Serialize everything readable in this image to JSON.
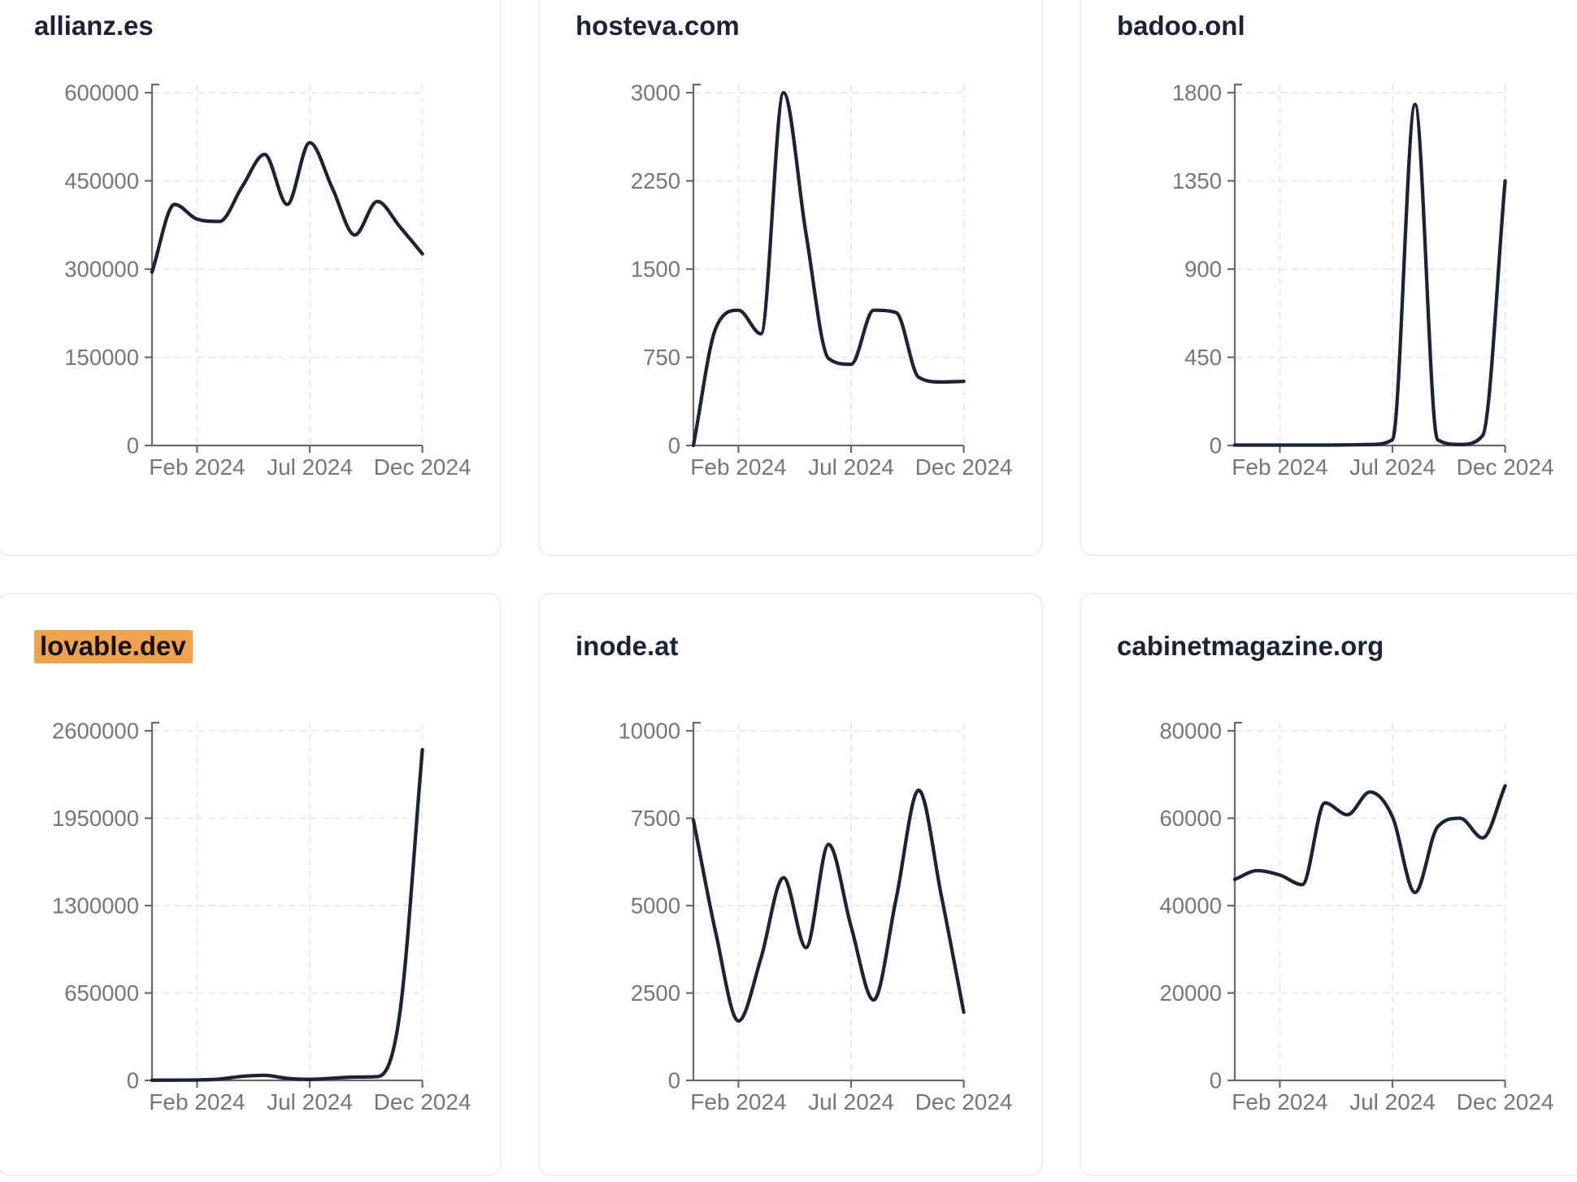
{
  "page": {
    "background": "#ffffff"
  },
  "style": {
    "line_color": "#1c2337",
    "axis_color": "#6a6a6a",
    "tick_label_color": "#767676",
    "grid_color": "#e8e8ea",
    "title_color": "#1b2437",
    "highlight_color": "#f1a24e",
    "card_border_color": "#eceef2"
  },
  "x_axis": {
    "tick_labels": [
      "Feb 2024",
      "Jul 2024",
      "Dec 2024"
    ],
    "tick_months": [
      2,
      7,
      12
    ]
  },
  "charts": [
    {
      "title": "allianz.es",
      "title_highlighted": false,
      "chart_data": {
        "type": "line",
        "x": [
          "Dec 2023",
          "Jan 2024",
          "Feb 2024",
          "Mar 2024",
          "Apr 2024",
          "May 2024",
          "Jun 2024",
          "Jul 2024",
          "Aug 2024",
          "Sep 2024",
          "Oct 2024",
          "Nov 2024",
          "Dec 2024"
        ],
        "values": [
          295000,
          410000,
          385000,
          381000,
          440000,
          495000,
          410000,
          515000,
          438000,
          358000,
          415000,
          372000,
          326000
        ],
        "y_ticks": [
          0,
          150000,
          300000,
          450000,
          600000
        ],
        "ylim": [
          0,
          600000
        ],
        "x_tick_labels": [
          "Feb 2024",
          "Jul 2024",
          "Dec 2024"
        ],
        "grid": true,
        "legend": false
      }
    },
    {
      "title": "hosteva.com",
      "title_highlighted": false,
      "chart_data": {
        "type": "line",
        "x": [
          "Dec 2023",
          "Jan 2024",
          "Feb 2024",
          "Mar 2024",
          "Apr 2024",
          "May 2024",
          "Jun 2024",
          "Jul 2024",
          "Aug 2024",
          "Sep 2024",
          "Oct 2024",
          "Nov 2024",
          "Dec 2024"
        ],
        "values": [
          0,
          1000,
          1150,
          950,
          3000,
          1800,
          740,
          690,
          1150,
          1130,
          580,
          540,
          545
        ],
        "y_ticks": [
          0,
          750,
          1500,
          2250,
          3000
        ],
        "ylim": [
          0,
          3000
        ],
        "x_tick_labels": [
          "Feb 2024",
          "Jul 2024",
          "Dec 2024"
        ],
        "grid": true,
        "legend": false
      }
    },
    {
      "title": "badoo.onl",
      "title_highlighted": false,
      "chart_data": {
        "type": "line",
        "x": [
          "Dec 2023",
          "Jan 2024",
          "Feb 2024",
          "Mar 2024",
          "Apr 2024",
          "May 2024",
          "Jun 2024",
          "Jul 2024",
          "Aug 2024",
          "Sep 2024",
          "Oct 2024",
          "Nov 2024",
          "Dec 2024"
        ],
        "values": [
          2,
          2,
          2,
          2,
          2,
          3,
          5,
          30,
          1740,
          30,
          5,
          50,
          1350
        ],
        "y_ticks": [
          0,
          450,
          900,
          1350,
          1800
        ],
        "ylim": [
          0,
          1800
        ],
        "x_tick_labels": [
          "Feb 2024",
          "Jul 2024",
          "Dec 2024"
        ],
        "grid": true,
        "legend": false
      }
    },
    {
      "title": "lovable.dev",
      "title_highlighted": true,
      "chart_data": {
        "type": "line",
        "x": [
          "Dec 2023",
          "Jan 2024",
          "Feb 2024",
          "Mar 2024",
          "Apr 2024",
          "May 2024",
          "Jun 2024",
          "Jul 2024",
          "Aug 2024",
          "Sep 2024",
          "Oct 2024",
          "Nov 2024",
          "Dec 2024"
        ],
        "values": [
          1000,
          2000,
          3000,
          10000,
          30000,
          38000,
          15000,
          8000,
          16000,
          25000,
          28000,
          500000,
          2460000
        ],
        "y_ticks": [
          0,
          650000,
          1300000,
          1950000,
          2600000
        ],
        "ylim": [
          0,
          2600000
        ],
        "x_tick_labels": [
          "Feb 2024",
          "Jul 2024",
          "Dec 2024"
        ],
        "grid": true,
        "legend": false
      }
    },
    {
      "title": "inode.at",
      "title_highlighted": false,
      "chart_data": {
        "type": "line",
        "x": [
          "Dec 2023",
          "Jan 2024",
          "Feb 2024",
          "Mar 2024",
          "Apr 2024",
          "May 2024",
          "Jun 2024",
          "Jul 2024",
          "Aug 2024",
          "Sep 2024",
          "Oct 2024",
          "Nov 2024",
          "Dec 2024"
        ],
        "values": [
          7450,
          4200,
          1700,
          3500,
          5800,
          3800,
          6750,
          4400,
          2300,
          5200,
          8300,
          5300,
          1950
        ],
        "y_ticks": [
          0,
          2500,
          5000,
          7500,
          10000
        ],
        "ylim": [
          0,
          10000
        ],
        "x_tick_labels": [
          "Feb 2024",
          "Jul 2024",
          "Dec 2024"
        ],
        "grid": true,
        "legend": false
      }
    },
    {
      "title": "cabinetmagazine.org",
      "title_highlighted": false,
      "chart_data": {
        "type": "line",
        "x": [
          "Dec 2023",
          "Jan 2024",
          "Feb 2024",
          "Mar 2024",
          "Apr 2024",
          "May 2024",
          "Jun 2024",
          "Jul 2024",
          "Aug 2024",
          "Sep 2024",
          "Oct 2024",
          "Nov 2024",
          "Dec 2024"
        ],
        "values": [
          46000,
          48000,
          47000,
          44800,
          63500,
          60800,
          66000,
          60300,
          43000,
          58000,
          60000,
          55500,
          67400
        ],
        "y_ticks": [
          0,
          20000,
          40000,
          60000,
          80000
        ],
        "ylim": [
          0,
          80000
        ],
        "x_tick_labels": [
          "Feb 2024",
          "Jul 2024",
          "Dec 2024"
        ],
        "grid": true,
        "legend": false
      }
    }
  ]
}
